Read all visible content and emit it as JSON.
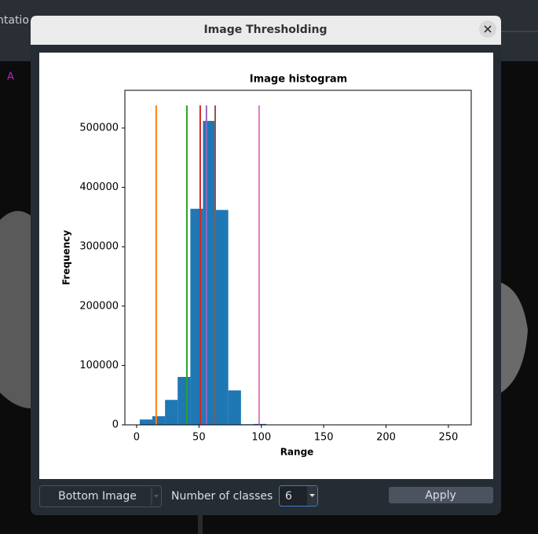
{
  "window": {
    "title": "Image Thresholding",
    "background_text": "ntatio",
    "orientation_label": "A"
  },
  "chart_data": {
    "type": "histogram",
    "title": "Image histogram",
    "x_label": "Range",
    "y_label": "Frequency",
    "bins": [
      2.5,
      12.6,
      22.8,
      32.9,
      43.1,
      53.2,
      63.4,
      73.5,
      83.7,
      93.8,
      104
    ],
    "values": [
      9000,
      14500,
      42000,
      80700,
      364000,
      512000,
      362000,
      58000,
      1000,
      1500
    ],
    "color": "#1f77b4",
    "thresholds": [
      {
        "value": 15.7,
        "color": "#ff7f0e"
      },
      {
        "value": 40.3,
        "color": "#2ca02c"
      },
      {
        "value": 51,
        "color": "#d62728"
      },
      {
        "value": 56,
        "color": "#9467bd"
      },
      {
        "value": 63,
        "color": "#8c564b"
      },
      {
        "value": 98.2,
        "color": "#e377c2"
      }
    ],
    "threshold_top": 538000,
    "xlim": [
      -9.4,
      268.3
    ],
    "ylim": [
      0,
      563500
    ],
    "xticks": [
      0,
      50,
      100,
      150,
      200,
      250
    ],
    "yticks": [
      0,
      100000,
      200000,
      300000,
      400000,
      500000
    ]
  },
  "controls": {
    "image_select": "Bottom Image",
    "classes_label": "Number of classes",
    "classes_value": 6,
    "apply": "Apply"
  }
}
